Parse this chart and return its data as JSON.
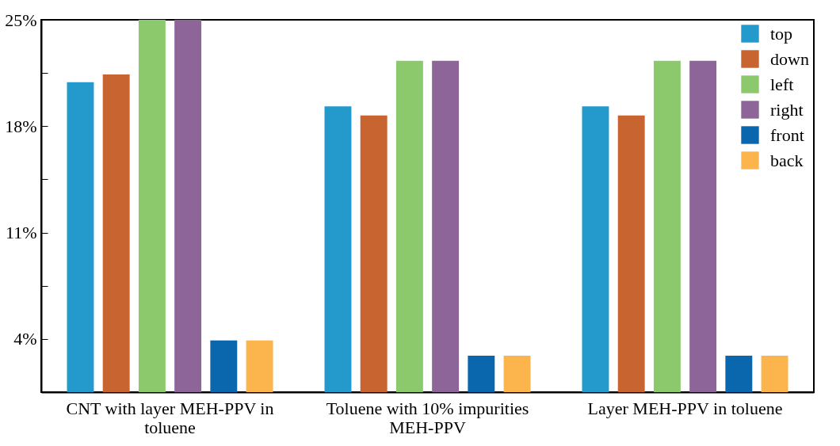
{
  "chart_data": {
    "type": "bar",
    "categories": [
      "CNT with layer MEH-PPV in toluene",
      "Toluene with 10% impurities MEH-PPV",
      "Layer MEH-PPV in toluene"
    ],
    "series": [
      {
        "name": "top",
        "color": "#2499cc",
        "values": [
          20.9,
          19.3,
          19.3
        ]
      },
      {
        "name": "down",
        "color": "#c8642f",
        "values": [
          21.4,
          18.7,
          18.7
        ]
      },
      {
        "name": "left",
        "color": "#8bc96c",
        "values": [
          25,
          22.3,
          22.3
        ]
      },
      {
        "name": "right",
        "color": "#8e6598",
        "values": [
          25,
          22.3,
          22.3
        ]
      },
      {
        "name": "front",
        "color": "#0a66ad",
        "values": [
          3.9,
          2.9,
          2.9
        ]
      },
      {
        "name": "back",
        "color": "#fbb54c",
        "values": [
          3.9,
          2.9,
          2.9
        ]
      }
    ],
    "ylim": [
      0.5,
      25
    ],
    "yticks": [
      {
        "value": 4,
        "label": "4%"
      },
      {
        "value": 7.5,
        "label": null
      },
      {
        "value": 11,
        "label": "11%"
      },
      {
        "value": 14.5,
        "label": null
      },
      {
        "value": 18,
        "label": "18%"
      },
      {
        "value": 21.5,
        "label": null
      },
      {
        "value": 25,
        "label": "25%"
      }
    ],
    "grid": false,
    "legend": "top right"
  }
}
